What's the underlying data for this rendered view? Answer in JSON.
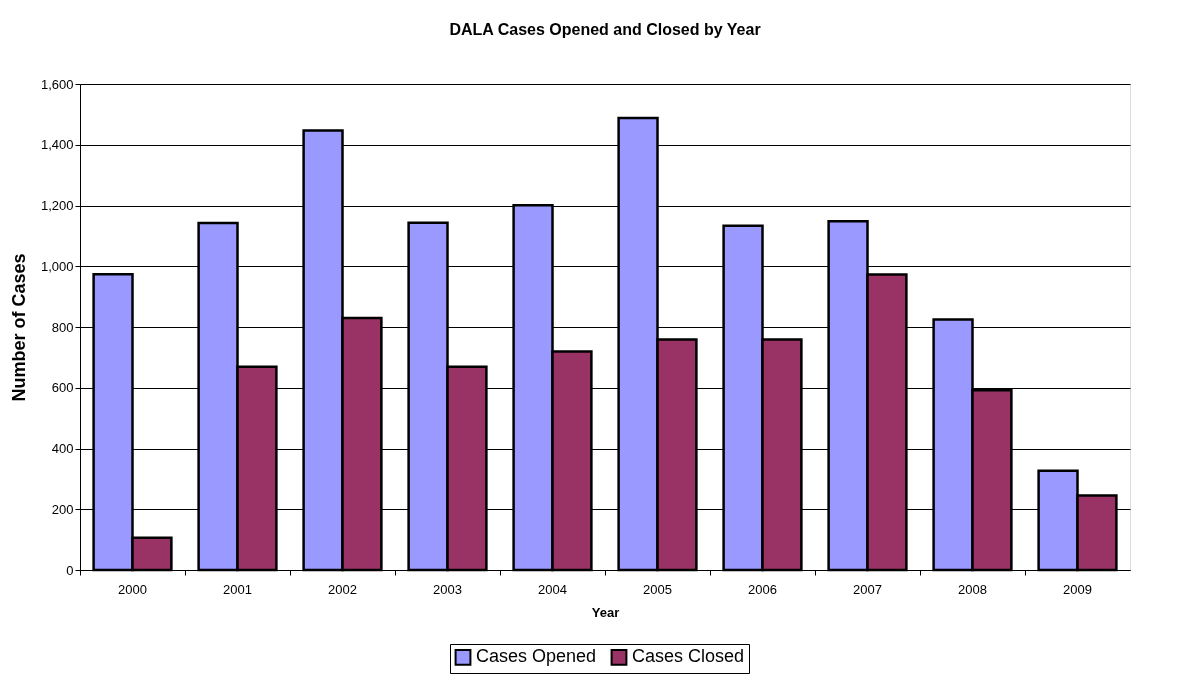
{
  "chart_data": {
    "type": "bar",
    "title": "DALA Cases Opened and Closed by Year",
    "xlabel": "Year",
    "ylabel": "Number of Cases",
    "categories": [
      "2000",
      "2001",
      "2002",
      "2003",
      "2004",
      "2005",
      "2006",
      "2007",
      "2008",
      "2009"
    ],
    "series": [
      {
        "name": "Cases Opened",
        "color": "#9999ff",
        "values": [
          974,
          1142,
          1447,
          1143,
          1201,
          1488,
          1133,
          1148,
          825,
          327
        ]
      },
      {
        "name": "Cases Closed",
        "color": "#993366",
        "values": [
          106,
          669,
          830,
          669,
          719,
          759,
          759,
          973,
          592,
          245
        ]
      }
    ],
    "ylim": [
      0,
      1600
    ],
    "yticks": [
      {
        "value": 0,
        "label": "0"
      },
      {
        "value": 200,
        "label": "200"
      },
      {
        "value": 400,
        "label": "400"
      },
      {
        "value": 600,
        "label": "600"
      },
      {
        "value": 800,
        "label": "800"
      },
      {
        "value": 1000,
        "label": "1,000"
      },
      {
        "value": 1200,
        "label": "1,200"
      },
      {
        "value": 1400,
        "label": "1,400"
      },
      {
        "value": 1600,
        "label": "1,600"
      }
    ],
    "grid": "y",
    "legend": "bottom"
  }
}
